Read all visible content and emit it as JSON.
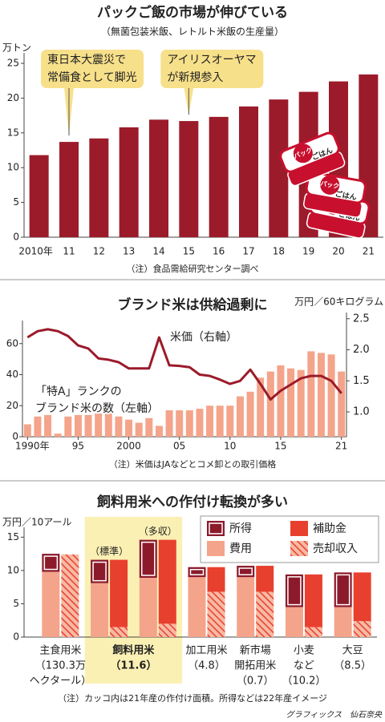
{
  "chart_data": [
    {
      "type": "bar",
      "title": "パックご飯の市場が伸びている",
      "subtitle": "（無菌包装米飯、レトルト米飯の生産量）",
      "unit": "万トン",
      "categories": [
        "2010年",
        "11",
        "12",
        "13",
        "14",
        "15",
        "16",
        "17",
        "18",
        "19",
        "20",
        "21"
      ],
      "values": [
        11.8,
        13.7,
        14.2,
        15.8,
        16.9,
        16.7,
        17.3,
        18.8,
        19.8,
        20.9,
        22.4,
        23.4
      ],
      "color": "#9b1b2a",
      "ylim": [
        0,
        26.5
      ],
      "yticks": [
        0,
        5,
        10,
        15,
        20,
        25
      ],
      "annotations": [
        {
          "lines": [
            "東日本大震災で",
            "常備食として脚光"
          ],
          "category_index": 1
        },
        {
          "lines": [
            "アイリスオーヤマ",
            "が新規参入"
          ],
          "category_index": 5
        }
      ],
      "illustration_labels": [
        "パック",
        "ごはん"
      ],
      "note": "（注）食品需給研究センター調べ"
    },
    {
      "type": "bar_line",
      "title": "ブランド米は供給過剰に",
      "y2unit": "万円／60キログラム",
      "categories": [
        "1990年",
        null,
        null,
        null,
        null,
        "95",
        null,
        null,
        null,
        null,
        "2000",
        null,
        null,
        null,
        null,
        "05",
        null,
        null,
        null,
        null,
        "10",
        null,
        null,
        null,
        null,
        "15",
        null,
        null,
        null,
        null,
        null,
        "21"
      ],
      "series": [
        {
          "label_lines": [
            "「特A」ランクの",
            "ブランド米の数（左軸）"
          ],
          "type": "bar",
          "color": "#f4a48a",
          "values": [
            8,
            13,
            14,
            2,
            13,
            14,
            14,
            15,
            15,
            13,
            11,
            9,
            12,
            7,
            17,
            17,
            17,
            18,
            20,
            20,
            20,
            26,
            29,
            38,
            42,
            46,
            44,
            43,
            55,
            54,
            53,
            42
          ]
        },
        {
          "label": "米価（右軸）",
          "type": "line",
          "axis": "y2",
          "color": "#9b1b2a",
          "values": [
            2.2,
            2.3,
            2.33,
            2.3,
            2.22,
            2.07,
            2.02,
            1.86,
            1.84,
            1.8,
            1.7,
            1.7,
            1.7,
            2.2,
            1.75,
            1.74,
            1.72,
            1.6,
            1.58,
            1.52,
            1.45,
            1.5,
            1.68,
            1.45,
            1.2,
            1.34,
            1.44,
            1.54,
            1.58,
            1.58,
            1.5,
            1.3
          ]
        }
      ],
      "ylim": [
        0,
        80
      ],
      "yticks": [
        0,
        20,
        40,
        60
      ],
      "y2lim": [
        0.6,
        2.6
      ],
      "y2ticks": [
        {
          "value": 1,
          "label": "1.0"
        },
        1.5,
        {
          "value": 2,
          "label": "2.0"
        },
        2.5
      ],
      "note": "（注）米価はJAなどとコメ卸との取引価格"
    },
    {
      "type": "paired_stacked_bar",
      "title": "飼料用米への作付け転換が多い",
      "unit": "万円／10アール",
      "categories": [
        [
          "主食用米",
          "（130.3万",
          "ヘクタール）"
        ],
        [
          "飼料用米",
          "（11.6）"
        ],
        null,
        [
          "加工用米",
          "（4.8）"
        ],
        [
          "新市場",
          "開拓用米",
          "（0.7）"
        ],
        [
          "小麦",
          "など",
          "（10.2）"
        ],
        [
          "大豆",
          "（8.5）"
        ]
      ],
      "scenarios": [
        null,
        "（標準）",
        "（多収）",
        null,
        null,
        null,
        null
      ],
      "stacks": [
        [
          {
            "name": "費用",
            "color": "#f4a48a",
            "values": [
              9.8,
              8.1,
              8.9,
              9.0,
              9.0,
              4.5,
              4.5
            ]
          },
          {
            "name": "所得",
            "color": "#8b1a2b",
            "outlined": true,
            "values": [
              2.7,
              3.5,
              5.7,
              1.5,
              1.7,
              4.9,
              5.2
            ]
          }
        ],
        [
          {
            "name": "売却収入",
            "color": "#e8402e",
            "pattern": "hatch",
            "values": [
              12.4,
              1.5,
              2.0,
              6.8,
              6.8,
              1.5,
              2.4
            ]
          },
          {
            "name": "補助金",
            "color": "#e8402e",
            "values": [
              0,
              10.1,
              12.6,
              3.7,
              3.9,
              7.9,
              7.3
            ]
          }
        ]
      ],
      "ylim": [
        0,
        16
      ],
      "yticks": [
        0,
        5,
        10,
        15
      ],
      "note": "（注）カッコ内は21年産の作付け面積。所得などは22年産イメージ",
      "credit": "グラフィックス　仙石奈央"
    }
  ]
}
